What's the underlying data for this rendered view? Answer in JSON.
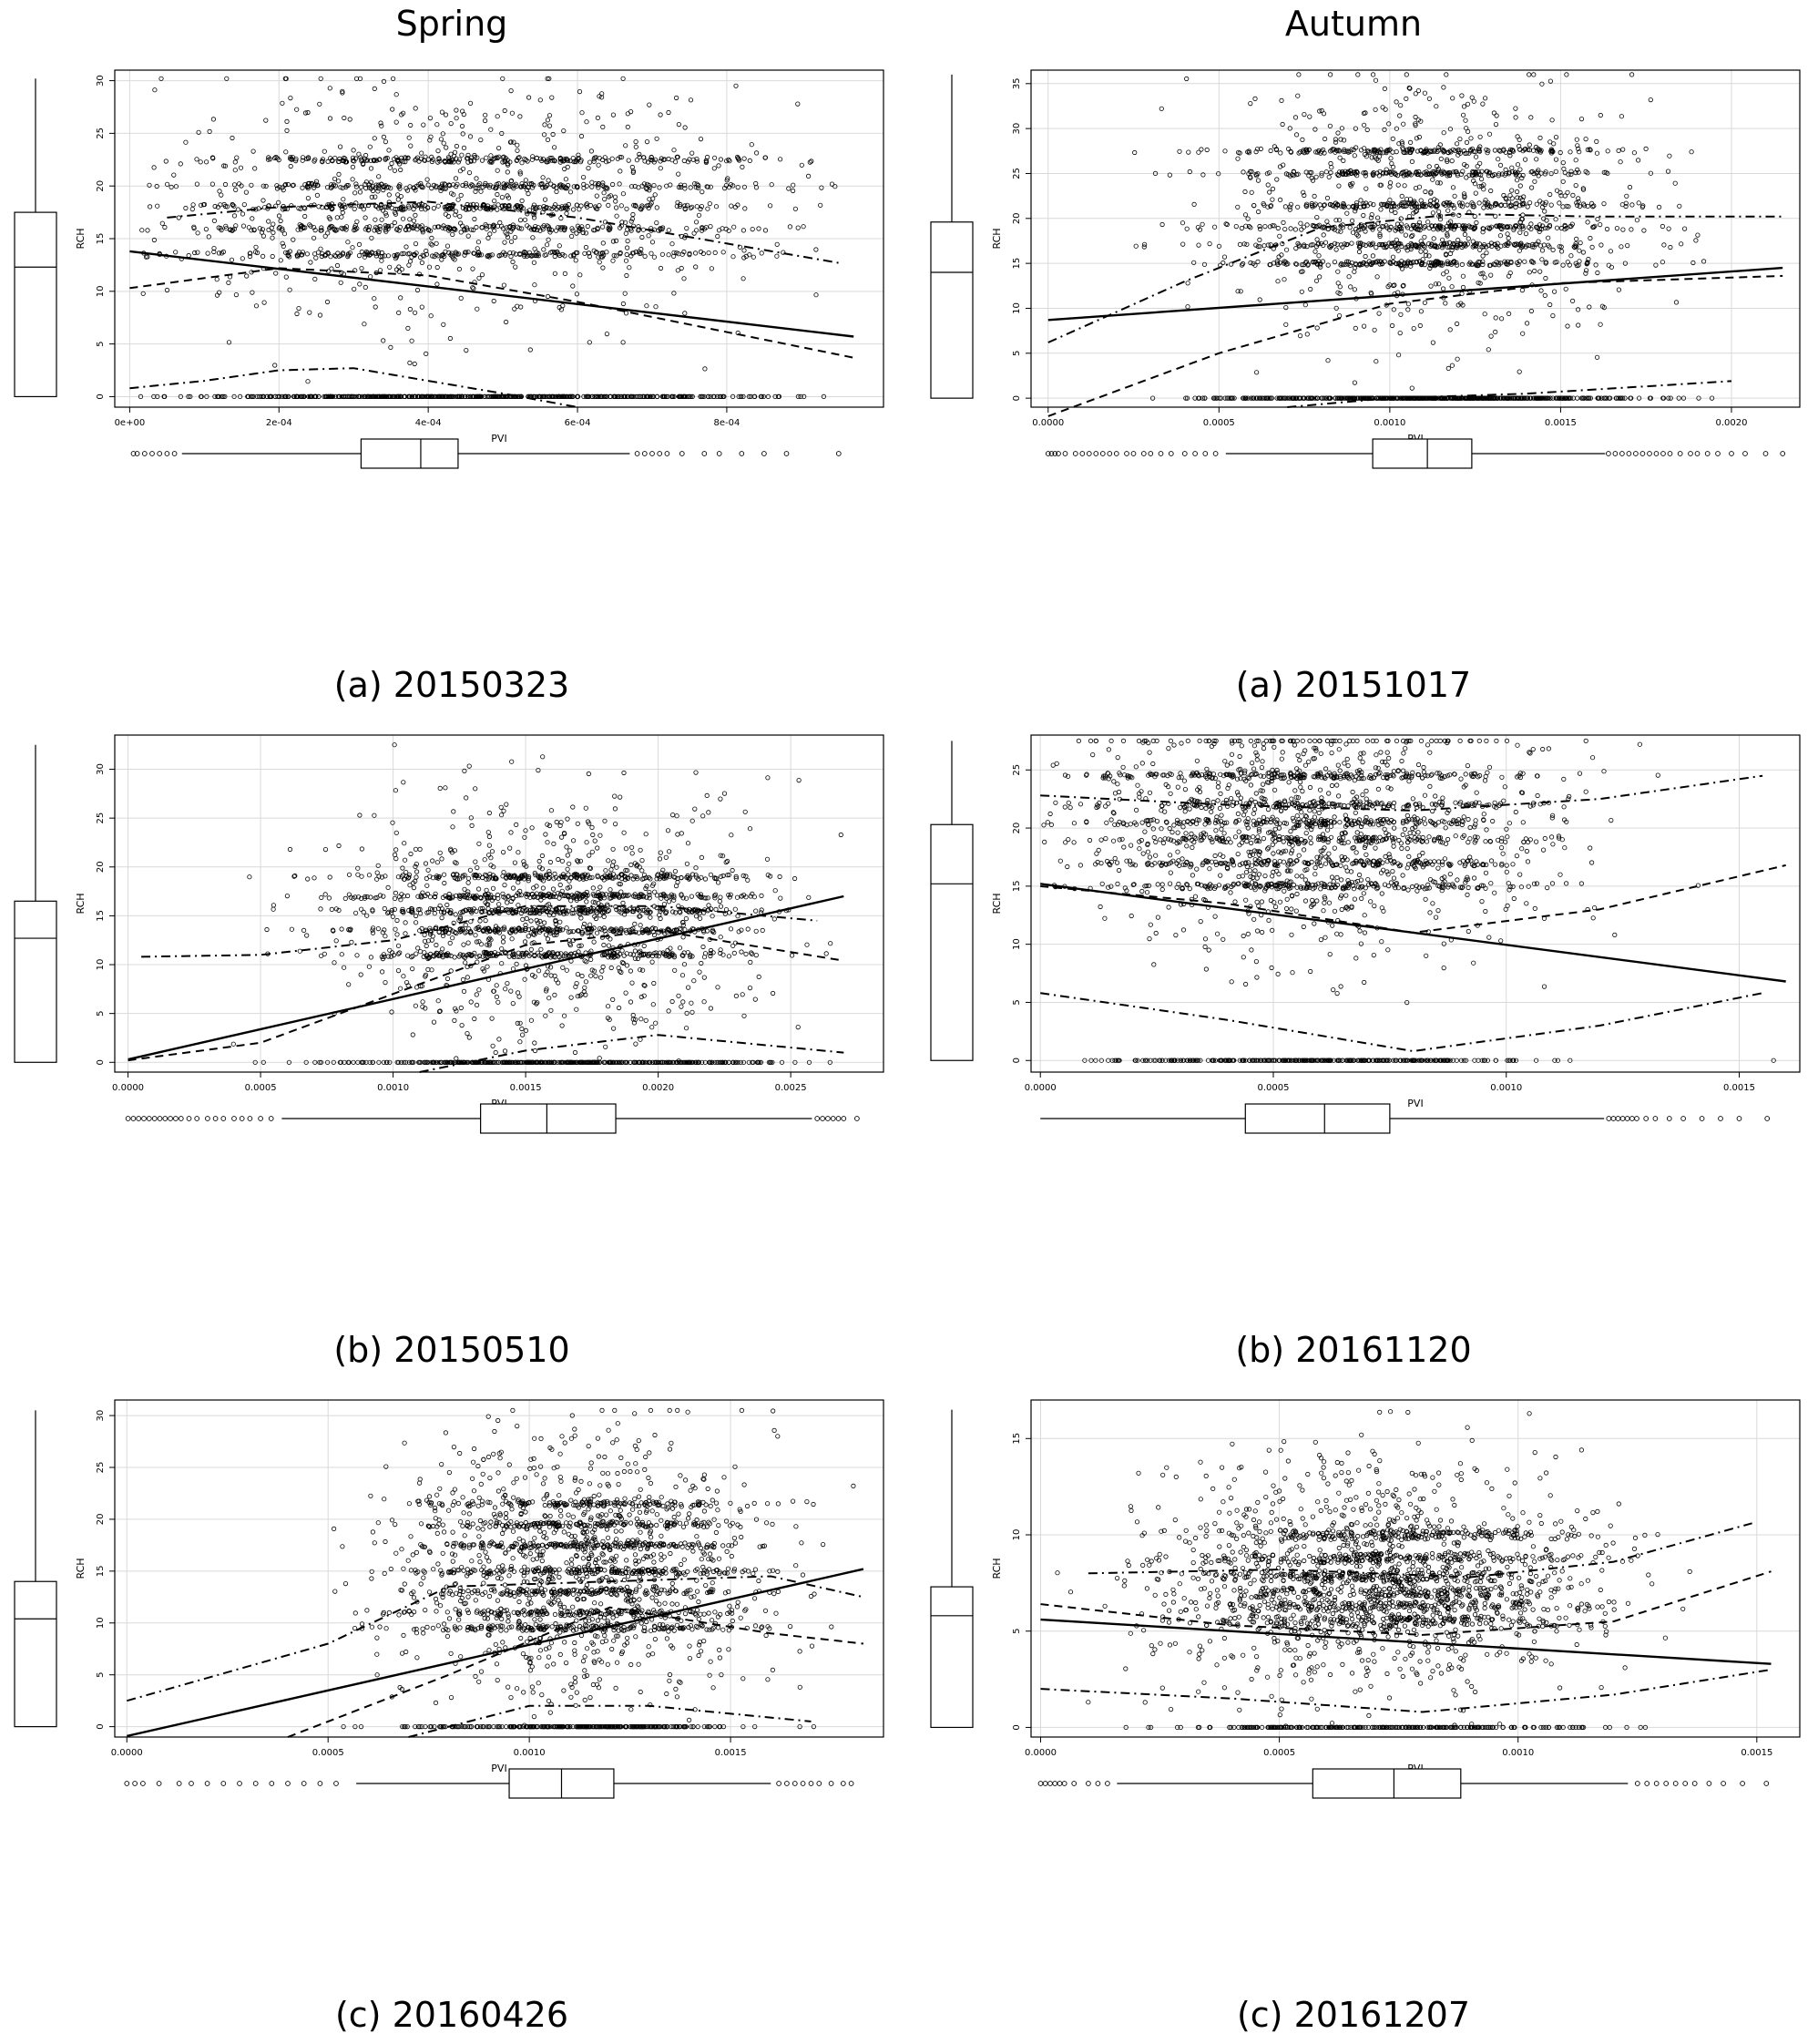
{
  "headers": {
    "left": "Spring",
    "right": "Autumn"
  },
  "chart_data": [
    {
      "type": "scatter",
      "caption": "(a) 20150323",
      "xlabel": "PVI",
      "ylabel": "RCH",
      "xlim": [
        -2e-05,
        0.00101
      ],
      "ylim": [
        -1,
        31
      ],
      "xticks": [
        0,
        0.0002,
        0.0004,
        0.0006,
        0.0008
      ],
      "xtick_labels": [
        "0e+00",
        "2e-04",
        "4e-04",
        "6e-04",
        "8e-04"
      ],
      "yticks": [
        0,
        5,
        10,
        15,
        20,
        25,
        30
      ],
      "grid": true,
      "scatter": {
        "x_center": 0.00045,
        "x_spread": 0.0002,
        "x_min": 1e-05,
        "x_max": 0.00095,
        "y_max": 30.2,
        "zero_share": 0.25,
        "bands": [
          13.5,
          16,
          18,
          20,
          22.5
        ]
      },
      "lines": [
        {
          "style": "solid",
          "x": [
            0,
            0.00097
          ],
          "y": [
            13.8,
            5.7
          ]
        },
        {
          "style": "dashed",
          "x": [
            0,
            0.0002,
            0.0004,
            0.0006,
            0.00097
          ],
          "y": [
            10.3,
            12.2,
            11.5,
            9.0,
            3.7
          ]
        },
        {
          "style": "dashdot",
          "x": [
            5e-05,
            0.0002,
            0.0004,
            0.0006,
            0.00095
          ],
          "y": [
            17.0,
            18.0,
            18.5,
            17.0,
            12.7
          ]
        },
        {
          "style": "dashdot",
          "x": [
            0,
            0.0001,
            0.0002,
            0.0003,
            0.0004,
            0.0005,
            0.0006
          ],
          "y": [
            0.8,
            1.5,
            2.5,
            2.7,
            1.5,
            0.3,
            -1.0
          ]
        }
      ],
      "y_box": {
        "min": 0,
        "q1": 0,
        "median": 12.3,
        "q3": 17.5,
        "max": 30.2
      },
      "x_box": {
        "q1": 0.00031,
        "median": 0.00039,
        "q3": 0.00044,
        "whisker_low": 7e-05,
        "whisker_high": 0.00067,
        "outliers_low": [
          5e-06,
          1e-05,
          2e-05,
          3e-05,
          4e-05,
          5e-05,
          6e-05
        ],
        "outliers_high": [
          0.00068,
          0.00069,
          0.0007,
          0.00071,
          0.00072,
          0.00074,
          0.00077,
          0.00079,
          0.00082,
          0.00085,
          0.00088,
          0.00095
        ]
      }
    },
    {
      "type": "scatter",
      "caption": "(a) 20151017",
      "xlabel": "PVI",
      "ylabel": "RCH",
      "xlim": [
        -5e-05,
        0.0022
      ],
      "ylim": [
        -1,
        36.5
      ],
      "xticks": [
        0,
        0.0005,
        0.001,
        0.0015,
        0.002
      ],
      "xtick_labels": [
        "0.0000",
        "0.0005",
        "0.0010",
        "0.0015",
        "0.0020"
      ],
      "yticks": [
        0,
        5,
        10,
        15,
        20,
        25,
        30,
        35
      ],
      "grid": true,
      "scatter": {
        "x_center": 0.0011,
        "x_spread": 0.0003,
        "x_min": 0,
        "x_max": 0.00215,
        "y_max": 36,
        "zero_share": 0.25,
        "bands": [
          15,
          17,
          19,
          21.5,
          25,
          27.5
        ]
      },
      "lines": [
        {
          "style": "solid",
          "x": [
            0,
            0.00215
          ],
          "y": [
            8.7,
            14.5
          ]
        },
        {
          "style": "dashed",
          "x": [
            0,
            0.0005,
            0.001,
            0.0015,
            0.00215
          ],
          "y": [
            -2.0,
            5.0,
            10.5,
            12.8,
            13.6
          ]
        },
        {
          "style": "dashdot",
          "x": [
            0,
            0.0004,
            0.0008,
            0.0012,
            0.0016,
            0.00215
          ],
          "y": [
            6.2,
            13.0,
            19.0,
            20.5,
            20.2,
            20.2
          ]
        },
        {
          "style": "dashdot",
          "x": [
            0.0007,
            0.001,
            0.0014,
            0.002
          ],
          "y": [
            -1.0,
            0.0,
            0.5,
            1.9
          ]
        }
      ],
      "y_box": {
        "min": 0,
        "q1": 0,
        "median": 14.0,
        "q3": 19.6,
        "max": 36
      },
      "x_box": {
        "q1": 0.00095,
        "median": 0.00111,
        "q3": 0.00124,
        "whisker_low": 0.00052,
        "whisker_high": 0.00163,
        "outliers_low": [
          0,
          1e-05,
          2e-05,
          3e-05,
          5e-05,
          8e-05,
          0.0001,
          0.00012,
          0.00014,
          0.00016,
          0.00018,
          0.0002,
          0.00023,
          0.00025,
          0.00028,
          0.0003,
          0.00033,
          0.00036,
          0.0004,
          0.00043,
          0.00046,
          0.00049
        ],
        "outliers_high": [
          0.00164,
          0.00166,
          0.00168,
          0.0017,
          0.00172,
          0.00174,
          0.00176,
          0.00178,
          0.0018,
          0.00182,
          0.00185,
          0.00188,
          0.0019,
          0.00193,
          0.00196,
          0.002,
          0.00204,
          0.0021,
          0.00215
        ]
      }
    },
    {
      "type": "scatter",
      "caption": "(b) 20150510",
      "xlabel": "PVI",
      "ylabel": "RCH",
      "xlim": [
        -5e-05,
        0.00285
      ],
      "ylim": [
        -1,
        33.5
      ],
      "xticks": [
        0,
        0.0005,
        0.001,
        0.0015,
        0.002,
        0.0025
      ],
      "xtick_labels": [
        "0.0000",
        "0.0005",
        "0.0010",
        "0.0015",
        "0.0020",
        "0.0025"
      ],
      "yticks": [
        0,
        5,
        10,
        15,
        20,
        25,
        30
      ],
      "grid": true,
      "scatter": {
        "x_center": 0.0016,
        "x_spread": 0.0004,
        "x_min": 5e-05,
        "x_max": 0.0027,
        "y_max": 32.5,
        "zero_share": 0.2,
        "bands": [
          11,
          13.5,
          15.5,
          17,
          19
        ]
      },
      "lines": [
        {
          "style": "solid",
          "x": [
            0,
            0.0027
          ],
          "y": [
            0.3,
            17.0
          ]
        },
        {
          "style": "dashed",
          "x": [
            0,
            0.0005,
            0.001,
            0.0015,
            0.002,
            0.0027
          ],
          "y": [
            0.2,
            2.0,
            7.0,
            12.0,
            13.5,
            10.4
          ]
        },
        {
          "style": "dashdot",
          "x": [
            5e-05,
            0.0005,
            0.001,
            0.0015,
            0.002,
            0.0026
          ],
          "y": [
            10.8,
            11.0,
            12.5,
            16.0,
            16.0,
            14.5
          ]
        },
        {
          "style": "dashdot",
          "x": [
            0.0011,
            0.0015,
            0.002,
            0.0027
          ],
          "y": [
            -1.0,
            1.2,
            2.8,
            1.0
          ]
        }
      ],
      "y_box": {
        "min": 0,
        "q1": 0,
        "median": 12.7,
        "q3": 16.5,
        "max": 32.5
      },
      "x_box": {
        "q1": 0.00133,
        "median": 0.00158,
        "q3": 0.00184,
        "whisker_low": 0.00058,
        "whisker_high": 0.00258,
        "outliers_low": [
          0,
          2e-05,
          4e-05,
          6e-05,
          8e-05,
          0.0001,
          0.00012,
          0.00014,
          0.00016,
          0.00018,
          0.0002,
          0.00023,
          0.00026,
          0.0003,
          0.00033,
          0.00036,
          0.0004,
          0.00043,
          0.00046,
          0.0005,
          0.00054
        ],
        "outliers_high": [
          0.0026,
          0.00262,
          0.00264,
          0.00266,
          0.00268,
          0.0027,
          0.00275
        ]
      }
    },
    {
      "type": "scatter",
      "caption": "(b) 20161120",
      "xlabel": "PVI",
      "ylabel": "RCH",
      "xlim": [
        -2e-05,
        0.00163
      ],
      "ylim": [
        -1,
        28
      ],
      "xticks": [
        0,
        0.0005,
        0.001,
        0.0015
      ],
      "xtick_labels": [
        "0.0000",
        "0.0005",
        "0.0010",
        "0.0015"
      ],
      "yticks": [
        0,
        5,
        10,
        15,
        20,
        25
      ],
      "grid": true,
      "scatter": {
        "x_center": 0.00058,
        "x_spread": 0.00025,
        "x_min": 0,
        "x_max": 0.00158,
        "y_max": 27.5,
        "zero_share": 0.15,
        "bands": [
          15,
          17,
          19,
          20.5,
          22,
          24.5
        ]
      },
      "lines": [
        {
          "style": "solid",
          "x": [
            0,
            0.0016
          ],
          "y": [
            15.2,
            6.8
          ]
        },
        {
          "style": "dashed",
          "x": [
            0,
            0.0004,
            0.0008,
            0.0012,
            0.0016
          ],
          "y": [
            15.0,
            13.5,
            11.0,
            13.0,
            16.8
          ]
        },
        {
          "style": "dashdot",
          "x": [
            0,
            0.0004,
            0.0008,
            0.0012,
            0.00155
          ],
          "y": [
            22.8,
            22.0,
            21.5,
            22.5,
            24.5
          ]
        },
        {
          "style": "dashdot",
          "x": [
            0,
            0.0004,
            0.0008,
            0.0012,
            0.00155
          ],
          "y": [
            5.8,
            3.5,
            0.8,
            3.0,
            5.8
          ]
        }
      ],
      "y_box": {
        "min": 0,
        "q1": 0,
        "median": 15.2,
        "q3": 20.3,
        "max": 27.5
      },
      "x_box": {
        "q1": 0.00044,
        "median": 0.00061,
        "q3": 0.00075,
        "whisker_low": 0,
        "whisker_high": 0.00121,
        "outliers_low": [],
        "outliers_high": [
          0.00122,
          0.00123,
          0.00124,
          0.00125,
          0.00126,
          0.00127,
          0.00128,
          0.0013,
          0.00132,
          0.00135,
          0.00138,
          0.00142,
          0.00146,
          0.0015,
          0.00156
        ]
      }
    },
    {
      "type": "scatter",
      "caption": "(c) 20160426",
      "xlabel": "PVI",
      "ylabel": "RCH",
      "xlim": [
        -3e-05,
        0.00188
      ],
      "ylim": [
        -1,
        31.5
      ],
      "xticks": [
        0,
        0.0005,
        0.001,
        0.0015
      ],
      "xtick_labels": [
        "0.0000",
        "0.0005",
        "0.0010",
        "0.0015"
      ],
      "yticks": [
        0,
        5,
        10,
        15,
        20,
        25,
        30
      ],
      "grid": true,
      "scatter": {
        "x_center": 0.00113,
        "x_spread": 0.00022,
        "x_min": 0,
        "x_max": 0.00183,
        "y_max": 30.5,
        "zero_share": 0.12,
        "bands": [
          9.5,
          11,
          13,
          15,
          17.5,
          19.5,
          21.5
        ]
      },
      "lines": [
        {
          "style": "solid",
          "x": [
            0,
            0.00183
          ],
          "y": [
            -0.9,
            15.2
          ]
        },
        {
          "style": "dashed",
          "x": [
            0.0004,
            0.0008,
            0.0012,
            0.0016,
            0.00183
          ],
          "y": [
            -1.0,
            5.0,
            11.5,
            9.0,
            8.0
          ]
        },
        {
          "style": "dashdot",
          "x": [
            0,
            0.0005,
            0.0008,
            0.0012,
            0.0016,
            0.00183
          ],
          "y": [
            2.5,
            8.0,
            13.5,
            14.0,
            14.5,
            12.5
          ]
        },
        {
          "style": "dashdot",
          "x": [
            0.0007,
            0.001,
            0.0013,
            0.0017
          ],
          "y": [
            -1.0,
            2.0,
            2.0,
            0.5
          ]
        }
      ],
      "y_box": {
        "min": 0,
        "q1": 0,
        "median": 10.4,
        "q3": 14.0,
        "max": 30.5
      },
      "x_box": {
        "q1": 0.00095,
        "median": 0.00108,
        "q3": 0.00121,
        "whisker_low": 0.00057,
        "whisker_high": 0.0016,
        "outliers_low": [
          0,
          2e-05,
          4e-05,
          8e-05,
          0.00013,
          0.00016,
          0.0002,
          0.00024,
          0.00028,
          0.00032,
          0.00036,
          0.0004,
          0.00044,
          0.00048,
          0.00052
        ],
        "outliers_high": [
          0.00162,
          0.00164,
          0.00166,
          0.00168,
          0.0017,
          0.00172,
          0.00175,
          0.00178,
          0.0018
        ]
      }
    },
    {
      "type": "scatter",
      "caption": "(c) 20161207",
      "xlabel": "PVI",
      "ylabel": "RCH",
      "xlim": [
        -2e-05,
        0.00159
      ],
      "ylim": [
        -0.5,
        17
      ],
      "xticks": [
        0,
        0.0005,
        0.001,
        0.0015
      ],
      "xtick_labels": [
        "0.0000",
        "0.0005",
        "0.0010",
        "0.0015"
      ],
      "yticks": [
        0,
        5,
        10,
        15
      ],
      "grid": true,
      "scatter": {
        "x_center": 0.0007,
        "x_spread": 0.00022,
        "x_min": 0,
        "x_max": 0.00153,
        "y_max": 16.5,
        "zero_share": 0.1,
        "bands": [
          5.5,
          6.3,
          7.0,
          7.8,
          8.8,
          10
        ]
      },
      "lines": [
        {
          "style": "solid",
          "x": [
            0,
            0.00153
          ],
          "y": [
            5.6,
            3.3
          ]
        },
        {
          "style": "dashed",
          "x": [
            0,
            0.0004,
            0.0008,
            0.0012,
            0.00153
          ],
          "y": [
            6.4,
            5.3,
            4.8,
            5.5,
            8.1
          ]
        },
        {
          "style": "dashdot",
          "x": [
            0.0001,
            0.0005,
            0.0009,
            0.0012,
            0.00149
          ],
          "y": [
            8.0,
            8.2,
            7.8,
            8.6,
            10.6
          ]
        },
        {
          "style": "dashdot",
          "x": [
            0,
            0.0004,
            0.0008,
            0.0012,
            0.00153
          ],
          "y": [
            2.0,
            1.5,
            0.8,
            1.7,
            3.0
          ]
        }
      ],
      "y_box": {
        "min": 0,
        "q1": 0,
        "median": 5.8,
        "q3": 7.3,
        "max": 16.5
      },
      "x_box": {
        "q1": 0.00057,
        "median": 0.00074,
        "q3": 0.00088,
        "whisker_low": 0.00016,
        "whisker_high": 0.00123,
        "outliers_low": [
          0,
          1e-05,
          2e-05,
          3e-05,
          4e-05,
          5e-05,
          7e-05,
          0.0001,
          0.00012,
          0.00014
        ],
        "outliers_high": [
          0.00125,
          0.00127,
          0.00129,
          0.00131,
          0.00133,
          0.00135,
          0.00137,
          0.0014,
          0.00143,
          0.00147,
          0.00152
        ]
      }
    }
  ]
}
